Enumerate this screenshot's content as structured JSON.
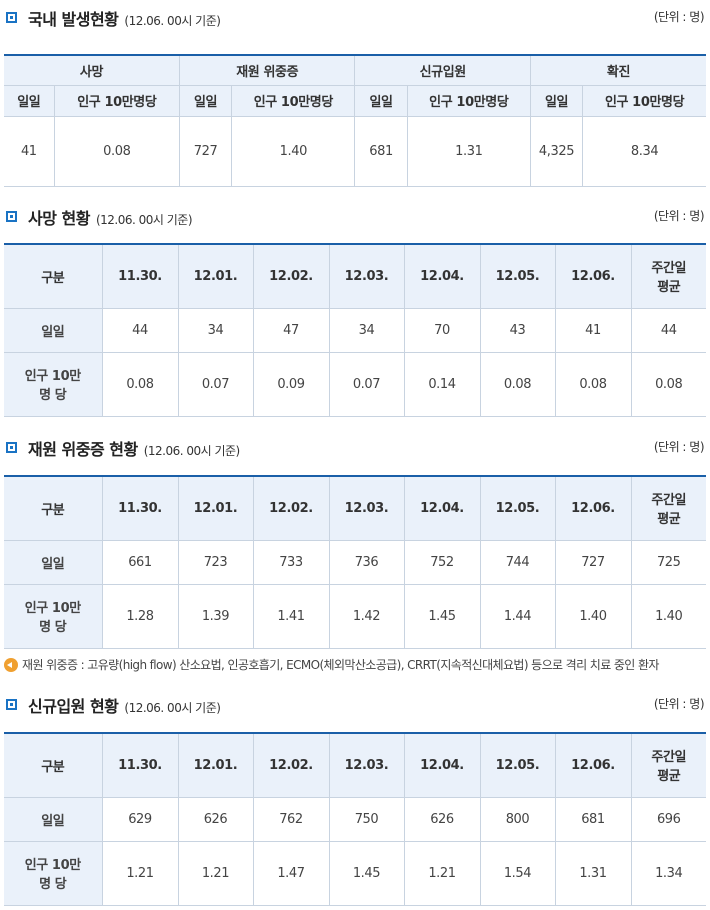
{
  "domestic": {
    "title": "국내 발생현황",
    "basis": "(12.06. 00시 기준)",
    "unit": "(단위 : 명)",
    "groups": [
      "사망",
      "재원 위중증",
      "신규입원",
      "확진"
    ],
    "subheaders": [
      "일일",
      "인구 10만명당",
      "일일",
      "인구 10만명당",
      "일일",
      "인구 10만명당",
      "일일",
      "인구 10만명당"
    ],
    "values": [
      "41",
      "0.08",
      "727",
      "1.40",
      "681",
      "1.31",
      "4,325",
      "8.34"
    ]
  },
  "deaths": {
    "title": "사망 현황",
    "basis": "(12.06. 00시 기준)",
    "unit": "(단위 : 명)",
    "header_label": "구분",
    "dates": [
      "11.30.",
      "12.01.",
      "12.02.",
      "12.03.",
      "12.04.",
      "12.05.",
      "12.06."
    ],
    "avg_label_1": "주간일",
    "avg_label_2": "평균",
    "daily_label": "일일",
    "per_label_1": "인구 10만",
    "per_label_2": "명 당",
    "daily": [
      "44",
      "34",
      "47",
      "34",
      "70",
      "43",
      "41",
      "44"
    ],
    "per100k": [
      "0.08",
      "0.07",
      "0.09",
      "0.07",
      "0.14",
      "0.08",
      "0.08",
      "0.08"
    ]
  },
  "critical": {
    "title": "재원 위중증 현황",
    "basis": "(12.06. 00시 기준)",
    "unit": "(단위 : 명)",
    "header_label": "구분",
    "dates": [
      "11.30.",
      "12.01.",
      "12.02.",
      "12.03.",
      "12.04.",
      "12.05.",
      "12.06."
    ],
    "avg_label_1": "주간일",
    "avg_label_2": "평균",
    "daily_label": "일일",
    "per_label_1": "인구 10만",
    "per_label_2": "명 당",
    "daily": [
      "661",
      "723",
      "733",
      "736",
      "752",
      "744",
      "727",
      "725"
    ],
    "per100k": [
      "1.28",
      "1.39",
      "1.41",
      "1.42",
      "1.45",
      "1.44",
      "1.40",
      "1.40"
    ]
  },
  "note": "재원 위중증 : 고유량(high flow) 산소요법, 인공호흡기, ECMO(체외막산소공급), CRRT(지속적신대체요법) 등으로 격리 치료 중인 환자",
  "admissions": {
    "title": "신규입원 현황",
    "basis": "(12.06. 00시 기준)",
    "unit": "(단위 : 명)",
    "header_label": "구분",
    "dates": [
      "11.30.",
      "12.01.",
      "12.02.",
      "12.03.",
      "12.04.",
      "12.05.",
      "12.06."
    ],
    "avg_label_1": "주간일",
    "avg_label_2": "평균",
    "daily_label": "일일",
    "per_label_1": "인구 10만",
    "per_label_2": "명 당",
    "daily": [
      "629",
      "626",
      "762",
      "750",
      "626",
      "800",
      "681",
      "696"
    ],
    "per100k": [
      "1.21",
      "1.21",
      "1.47",
      "1.45",
      "1.21",
      "1.54",
      "1.31",
      "1.34"
    ]
  }
}
